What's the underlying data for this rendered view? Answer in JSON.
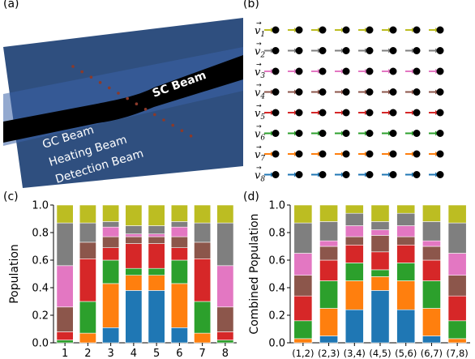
{
  "panels": {
    "a": {
      "label": "(a)",
      "beams": {
        "sc": "SC Beam",
        "gc": "GC Beam",
        "heating": "Heating Beam",
        "detection": "Detection Beam"
      },
      "colors": {
        "background": "#2f4f7f",
        "sheet": "#3a62a8",
        "beam": "#000000",
        "dots": "#8b3a2a"
      }
    },
    "b": {
      "label": "(b)",
      "row_labels": [
        "v1",
        "v2",
        "v3",
        "v4",
        "v5",
        "v6",
        "v7",
        "v8"
      ],
      "columns": 8,
      "arrows": [
        {
          "row": 0,
          "color": "#bcbd22",
          "positions": [
            0,
            1,
            2,
            3,
            4,
            5,
            6,
            7
          ]
        },
        {
          "row": 1,
          "color": "#7f7f7f",
          "positions": [
            0,
            1,
            2,
            3,
            4,
            5,
            6,
            7
          ]
        },
        {
          "row": 2,
          "color": "#e377c2",
          "positions": [
            0,
            1,
            2,
            3,
            4,
            5,
            6,
            7
          ]
        },
        {
          "row": 3,
          "color": "#8c564b",
          "positions": [
            0,
            1,
            2,
            3,
            4,
            5,
            6,
            7
          ]
        },
        {
          "row": 4,
          "color": "#d62728",
          "positions": [
            0,
            1,
            2,
            3,
            4,
            5,
            6,
            7
          ]
        },
        {
          "row": 5,
          "color": "#2ca02c",
          "positions": [
            0,
            1,
            2,
            3,
            4,
            5,
            6,
            7
          ]
        },
        {
          "row": 6,
          "color": "#ff7f0e",
          "positions": [
            0,
            1,
            2,
            3,
            4,
            5,
            6,
            7
          ]
        },
        {
          "row": 7,
          "color": "#1f77b4",
          "positions": [
            0,
            1,
            2,
            3,
            4,
            5,
            6,
            7
          ]
        }
      ]
    }
  },
  "chart_data": [
    {
      "panel_label": "(c)",
      "type": "bar",
      "stacked": true,
      "ylabel": "Population",
      "xlabel": "",
      "categories": [
        "1",
        "2",
        "3",
        "4",
        "5",
        "6",
        "7",
        "8"
      ],
      "ylim": [
        0,
        1.0
      ],
      "yticks": [
        "0.0",
        "0.2",
        "0.4",
        "0.6",
        "0.8",
        "1.0"
      ],
      "series": [
        {
          "color": "#1f77b4",
          "values": [
            0.0,
            0.0,
            0.11,
            0.38,
            0.38,
            0.11,
            0.0,
            0.0
          ]
        },
        {
          "color": "#ff7f0e",
          "values": [
            0.0,
            0.07,
            0.32,
            0.11,
            0.11,
            0.32,
            0.07,
            0.0
          ]
        },
        {
          "color": "#2ca02c",
          "values": [
            0.02,
            0.23,
            0.17,
            0.05,
            0.05,
            0.17,
            0.23,
            0.02
          ]
        },
        {
          "color": "#d62728",
          "values": [
            0.06,
            0.31,
            0.09,
            0.18,
            0.18,
            0.09,
            0.31,
            0.06
          ]
        },
        {
          "color": "#8c564b",
          "values": [
            0.18,
            0.12,
            0.08,
            0.05,
            0.05,
            0.08,
            0.12,
            0.18
          ]
        },
        {
          "color": "#e377c2",
          "values": [
            0.3,
            0.0,
            0.07,
            0.02,
            0.02,
            0.07,
            0.0,
            0.3
          ]
        },
        {
          "color": "#7f7f7f",
          "values": [
            0.31,
            0.14,
            0.04,
            0.06,
            0.06,
            0.04,
            0.14,
            0.31
          ]
        },
        {
          "color": "#bcbd22",
          "values": [
            0.13,
            0.13,
            0.12,
            0.15,
            0.15,
            0.12,
            0.13,
            0.13
          ]
        }
      ]
    },
    {
      "panel_label": "(d)",
      "type": "bar",
      "stacked": true,
      "ylabel": "Combined Population",
      "xlabel": "",
      "categories": [
        "(1,2)",
        "(2,3)",
        "(3,4)",
        "(4,5)",
        "(5,6)",
        "(6,7)",
        "(7,8)"
      ],
      "ylim": [
        0,
        1.0
      ],
      "yticks": [
        "0.0",
        "0.2",
        "0.4",
        "0.6",
        "0.8",
        "1.0"
      ],
      "series": [
        {
          "color": "#1f77b4",
          "values": [
            0.0,
            0.05,
            0.24,
            0.38,
            0.24,
            0.05,
            0.0
          ]
        },
        {
          "color": "#ff7f0e",
          "values": [
            0.03,
            0.2,
            0.21,
            0.1,
            0.21,
            0.2,
            0.03
          ]
        },
        {
          "color": "#2ca02c",
          "values": [
            0.13,
            0.2,
            0.13,
            0.05,
            0.13,
            0.2,
            0.13
          ]
        },
        {
          "color": "#d62728",
          "values": [
            0.18,
            0.15,
            0.13,
            0.13,
            0.13,
            0.15,
            0.18
          ]
        },
        {
          "color": "#8c564b",
          "values": [
            0.15,
            0.1,
            0.06,
            0.12,
            0.06,
            0.1,
            0.15
          ]
        },
        {
          "color": "#e377c2",
          "values": [
            0.16,
            0.04,
            0.08,
            0.04,
            0.08,
            0.04,
            0.16
          ]
        },
        {
          "color": "#7f7f7f",
          "values": [
            0.22,
            0.14,
            0.09,
            0.06,
            0.09,
            0.14,
            0.22
          ]
        },
        {
          "color": "#bcbd22",
          "values": [
            0.13,
            0.12,
            0.06,
            0.12,
            0.06,
            0.12,
            0.13
          ]
        }
      ]
    }
  ]
}
